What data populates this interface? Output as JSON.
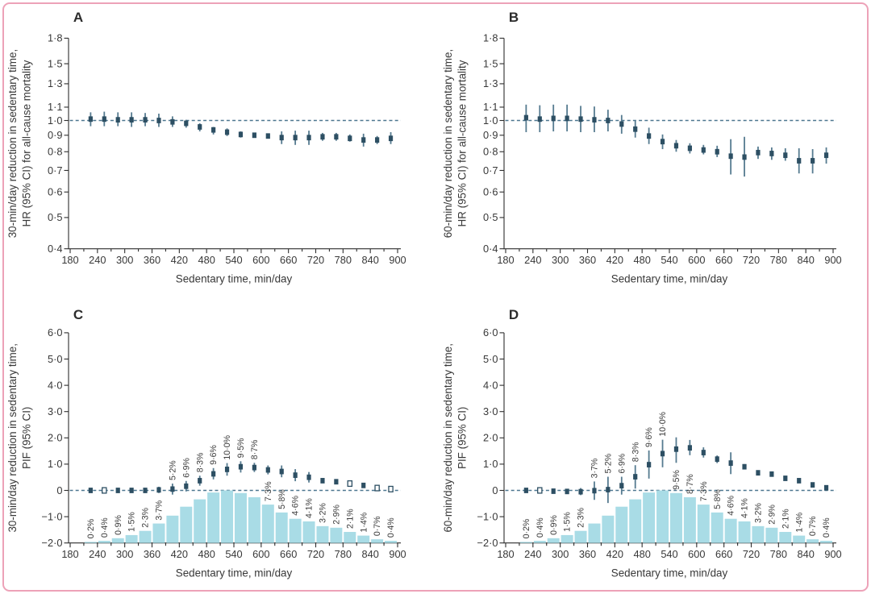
{
  "figure": {
    "kind": "four-panel scientific figure",
    "panel_letters": [
      "A",
      "B",
      "C",
      "D"
    ],
    "border_color": "#eda2b8",
    "background": "#ffffff"
  },
  "colors": {
    "axis": "#2e2e2e",
    "text": "#383838",
    "bar": "#a9dce6",
    "marker": "#2d4f63",
    "ci_line": "#567b90",
    "dashed_line": "#4d7790",
    "percent_label": "#3e3e3e",
    "panel_letter": "#2c2c2c"
  },
  "shared": {
    "x_axis": {
      "label": "Sedentary time, min/day",
      "ticks": [
        180,
        240,
        300,
        360,
        420,
        480,
        540,
        600,
        660,
        720,
        780,
        840,
        900
      ],
      "tick_labels": [
        "180",
        "240",
        "300",
        "360",
        "420",
        "480",
        "540",
        "600",
        "660",
        "720",
        "780",
        "840",
        "900"
      ],
      "minor_step": 30,
      "range": [
        180,
        900
      ]
    },
    "bin_centers": [
      225,
      255,
      285,
      315,
      345,
      375,
      405,
      435,
      465,
      495,
      525,
      555,
      585,
      615,
      645,
      675,
      705,
      735,
      765,
      795,
      825,
      855,
      885
    ],
    "hr_y_ticks": {
      "values": [
        1.8,
        1.5,
        1.3,
        1.1,
        1.0,
        0.9,
        0.8,
        0.7,
        0.6,
        0.5,
        0.4
      ],
      "labels": [
        "1·8",
        "1·5",
        "1·3",
        "1·1",
        "1·0",
        "0·9",
        "0·8",
        "0·7",
        "0·6",
        "0·5",
        "0·4"
      ]
    },
    "pif_y_ticks": {
      "values": [
        6,
        5,
        4,
        3,
        2,
        1,
        0,
        -1,
        -2
      ],
      "labels": [
        "6·0",
        "5·0",
        "4·0",
        "3·0",
        "2·0",
        "1·0",
        "0",
        "−1·0",
        "−2·0"
      ]
    },
    "distribution": {
      "description": "population distribution of sedentary time per 30-min bin",
      "percent": [
        0.2,
        0.4,
        0.9,
        1.5,
        2.3,
        3.7,
        5.2,
        6.9,
        8.3,
        9.6,
        10.0,
        9.5,
        8.7,
        7.3,
        5.8,
        4.6,
        4.1,
        3.2,
        2.9,
        2.1,
        1.4,
        0.7,
        0.4
      ],
      "labels": [
        "0·2%",
        "0·4%",
        "0·9%",
        "1·5%",
        "2·3%",
        "3·7%",
        "5·2%",
        "6·9%",
        "8·3%",
        "9·6%",
        "10·0%",
        "9·5%",
        "8·7%",
        "7·3%",
        "5·8%",
        "4·6%",
        "4·1%",
        "3·2%",
        "2·9%",
        "2·1%",
        "1·4%",
        "0·7%",
        "0·4%"
      ]
    }
  },
  "chart_data": [
    {
      "panel": "A",
      "type": "scatter",
      "y_scale": "log",
      "y_axis_title_lines": [
        "30-min/day reduction in sedentary time,",
        "HR (95% CI) for all-cause mortality"
      ],
      "xlabel": "Sedentary time, min/day",
      "ylim": [
        0.4,
        1.8
      ],
      "ref_line": 1.0,
      "values": [
        1.01,
        1.01,
        1.005,
        1.005,
        1.005,
        1.0,
        0.99,
        0.98,
        0.955,
        0.935,
        0.92,
        0.905,
        0.9,
        0.895,
        0.885,
        0.885,
        0.885,
        0.89,
        0.89,
        0.88,
        0.87,
        0.87,
        0.88
      ],
      "ci_low": [
        0.96,
        0.96,
        0.96,
        0.955,
        0.96,
        0.955,
        0.955,
        0.95,
        0.925,
        0.905,
        0.895,
        0.885,
        0.885,
        0.88,
        0.845,
        0.84,
        0.84,
        0.865,
        0.865,
        0.86,
        0.83,
        0.845,
        0.845
      ],
      "ci_high": [
        1.06,
        1.065,
        1.06,
        1.06,
        1.055,
        1.05,
        1.03,
        1.005,
        0.98,
        0.955,
        0.945,
        0.925,
        0.915,
        0.91,
        0.925,
        0.93,
        0.93,
        0.915,
        0.915,
        0.905,
        0.91,
        0.895,
        0.92
      ],
      "hollow_indices": [],
      "show_distribution": false,
      "labels_above_point_indices": []
    },
    {
      "panel": "B",
      "type": "scatter",
      "y_scale": "log",
      "y_axis_title_lines": [
        "60-min/day reduction in sedentary time,",
        "HR (95% CI) for all-cause mortality"
      ],
      "xlabel": "Sedentary time, min/day",
      "ylim": [
        0.4,
        1.8
      ],
      "ref_line": 1.0,
      "values": [
        1.02,
        1.01,
        1.015,
        1.015,
        1.01,
        1.005,
        1.0,
        0.975,
        0.94,
        0.895,
        0.86,
        0.835,
        0.82,
        0.81,
        0.8,
        0.775,
        0.77,
        0.795,
        0.79,
        0.78,
        0.75,
        0.75,
        0.78
      ],
      "ci_low": [
        0.92,
        0.92,
        0.925,
        0.925,
        0.92,
        0.92,
        0.925,
        0.91,
        0.885,
        0.845,
        0.815,
        0.8,
        0.79,
        0.785,
        0.77,
        0.68,
        0.67,
        0.76,
        0.755,
        0.75,
        0.685,
        0.685,
        0.735
      ],
      "ci_high": [
        1.12,
        1.115,
        1.12,
        1.12,
        1.11,
        1.105,
        1.08,
        1.04,
        1.0,
        0.95,
        0.905,
        0.87,
        0.85,
        0.84,
        0.835,
        0.875,
        0.89,
        0.83,
        0.825,
        0.82,
        0.82,
        0.815,
        0.825
      ],
      "hollow_indices": [],
      "show_distribution": false,
      "labels_above_point_indices": []
    },
    {
      "panel": "C",
      "type": "bar+scatter",
      "y_scale": "linear",
      "y_axis_title_lines": [
        "30-min/day reduction in sedentary time,",
        "PIF (95% CI)"
      ],
      "xlabel": "Sedentary time, min/day",
      "ylim": [
        -2.0,
        6.0
      ],
      "ref_line": 0,
      "values": [
        0,
        0,
        0,
        0,
        0,
        0.02,
        0.05,
        0.16,
        0.37,
        0.63,
        0.8,
        0.9,
        0.87,
        0.78,
        0.72,
        0.58,
        0.5,
        0.37,
        0.33,
        0.26,
        0.19,
        0.09,
        0.05
      ],
      "ci_low": [
        -0.02,
        -0.02,
        -0.03,
        -0.04,
        -0.07,
        -0.1,
        -0.16,
        -0.04,
        0.18,
        0.42,
        0.56,
        0.68,
        0.7,
        0.61,
        0.5,
        0.35,
        0.3,
        0.31,
        0.28,
        0.2,
        0.13,
        0.04,
        0
      ],
      "ci_high": [
        0.02,
        0.02,
        0.03,
        0.04,
        0.07,
        0.14,
        0.26,
        0.36,
        0.56,
        0.85,
        1.04,
        1.11,
        1.05,
        0.95,
        0.95,
        0.81,
        0.7,
        0.44,
        0.39,
        0.32,
        0.26,
        0.15,
        0.11
      ],
      "hollow_indices": [
        1,
        19,
        21,
        22
      ],
      "show_distribution": true,
      "labels_above_point_indices": [
        6,
        7,
        8,
        9,
        10,
        11,
        12
      ]
    },
    {
      "panel": "D",
      "type": "bar+scatter",
      "y_scale": "linear",
      "y_axis_title_lines": [
        "60-min/day reduction in sedentary time,",
        "PIF (95% CI)"
      ],
      "xlabel": "Sedentary time, min/day",
      "ylim": [
        -2.0,
        6.0
      ],
      "ref_line": 0,
      "values": [
        0,
        0,
        -0.03,
        -0.04,
        -0.05,
        -0.01,
        0.03,
        0.18,
        0.52,
        0.98,
        1.4,
        1.57,
        1.62,
        1.44,
        1.19,
        1.04,
        0.9,
        0.67,
        0.62,
        0.46,
        0.37,
        0.21,
        0.1
      ],
      "ci_low": [
        -0.03,
        -0.03,
        -0.06,
        -0.1,
        -0.18,
        -0.36,
        -0.48,
        -0.16,
        0.07,
        0.45,
        0.88,
        1.05,
        1.34,
        1.25,
        1.04,
        0.62,
        0.8,
        0.58,
        0.54,
        0.4,
        0.3,
        0.14,
        0.03
      ],
      "ci_high": [
        0.03,
        0.03,
        0.02,
        0.04,
        0.09,
        0.34,
        0.52,
        0.52,
        0.96,
        1.52,
        1.93,
        2.02,
        1.92,
        1.64,
        1.33,
        1.45,
        1.0,
        0.76,
        0.7,
        0.52,
        0.44,
        0.28,
        0.17
      ],
      "hollow_indices": [
        1
      ],
      "show_distribution": true,
      "labels_above_point_indices": [
        5,
        6,
        7,
        8,
        9,
        10
      ]
    }
  ]
}
